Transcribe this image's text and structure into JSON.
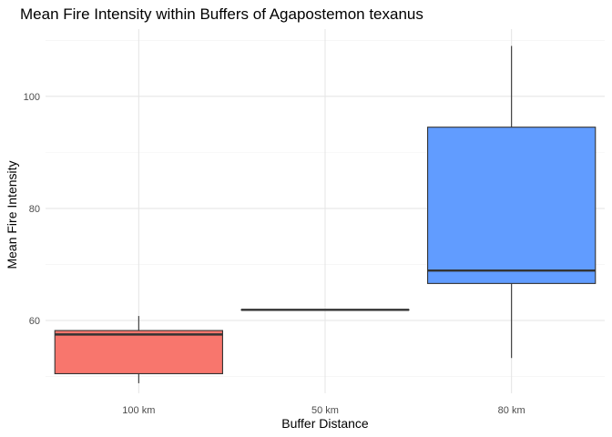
{
  "chart_data": {
    "type": "boxplot",
    "title": "Mean Fire Intensity within Buffers of Agapostemon texanus",
    "xlabel": "Buffer Distance",
    "ylabel": "Mean Fire Intensity",
    "ylim": [
      47,
      112
    ],
    "yticks": [
      60,
      80,
      100
    ],
    "grid": true,
    "legend": "none",
    "categories": [
      "100 km",
      "50 km",
      "80 km"
    ],
    "boxes": [
      {
        "category": "100 km",
        "min": 48.8,
        "q1": 50.5,
        "median": 57.5,
        "q3": 58.2,
        "max": 60.8,
        "color": "#F8766D"
      },
      {
        "category": "50 km",
        "min": 61.9,
        "q1": 61.9,
        "median": 61.9,
        "q3": 61.9,
        "max": 61.9,
        "color": "#00BA38"
      },
      {
        "category": "80 km",
        "min": 53.3,
        "q1": 66.6,
        "median": 68.9,
        "q3": 94.5,
        "max": 109.0,
        "color": "#619CFF"
      }
    ]
  }
}
